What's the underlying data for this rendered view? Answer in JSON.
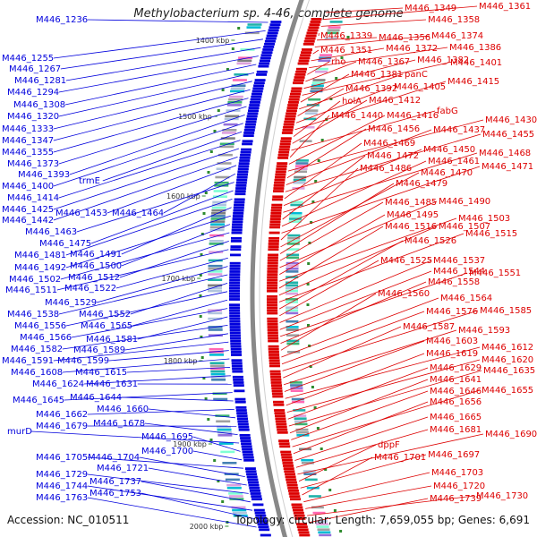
{
  "title": "Methylobacterium sp. 4-46, complete genome",
  "accession": "Accession: NC_010511",
  "summary": "Topology: circular; Length: 7,659,055 bp; Genes: 6,691",
  "colors": {
    "forward": "#0000dd",
    "reverse": "#dd0000",
    "backbone": "#888888",
    "tick": "#2e8b2e"
  },
  "ticks": [
    "1400 kbp",
    "1500 kbp",
    "1600 kbp",
    "1700 kbp",
    "1800 kbp",
    "1900 kbp",
    "2000 kbp"
  ],
  "left_labels": [
    "M446_1236",
    "M446_1255",
    "M446_1267",
    "M446_1281",
    "M446_1294",
    "M446_1308",
    "M446_1320",
    "M446_1333",
    "M446_1347",
    "M446_1355",
    "M446_1373",
    "M446_1393",
    "M446_1400",
    "trmE",
    "M446_1414",
    "M446_1425",
    "M446_1442",
    "M446_1453",
    "M446_1464",
    "M446_1463",
    "M446_1475",
    "M446_1481",
    "M446_1491",
    "M446_1492",
    "M446_1500",
    "M446_1502",
    "M446_1512",
    "M446_1511",
    "M446_1522",
    "M446_1529",
    "M446_1538",
    "M446_1552",
    "M446_1556",
    "M446_1565",
    "M446_1566",
    "M446_1581",
    "M446_1582",
    "M446_1589",
    "M446_1591",
    "M446_1599",
    "M446_1608",
    "M446_1615",
    "M446_1624",
    "M446_1631",
    "M446_1645",
    "M446_1644",
    "M446_1662",
    "M446_1660",
    "M446_1679",
    "M446_1678",
    "murD",
    "M446_1695",
    "M446_1700",
    "M446_1705",
    "M446_1704",
    "M446_1721",
    "M446_1729",
    "M446_1737",
    "M446_1744",
    "M446_1753",
    "M446_1763"
  ],
  "right_labels": [
    "M446_1349",
    "M446_1361",
    "M446_1358",
    "M446_1339",
    "M446_1356",
    "M446_1374",
    "M446_1351",
    "M446_1372",
    "M446_1386",
    "rho",
    "M446_1367",
    "M446_1382",
    "M446_1401",
    "M446_1381",
    "panC",
    "M446_1392",
    "M446_1405",
    "M446_1415",
    "holA",
    "M446_1412",
    "fabG",
    "M446_1440",
    "M446_1416",
    "M446_1430",
    "M446_1456",
    "M446_1437",
    "M446_1455",
    "M446_1469",
    "M446_1450",
    "M446_1468",
    "M446_1472",
    "M446_1461",
    "M446_1471",
    "M446_1486",
    "M446_1470",
    "M446_1479",
    "M446_1485",
    "M446_1490",
    "M446_1495",
    "M446_1503",
    "M446_1516",
    "M446_1507",
    "M446_1515",
    "M446_1526",
    "M446_1525",
    "M446_1537",
    "M446_1544",
    "M446_1551",
    "M446_1558",
    "M446_1560",
    "M446_1564",
    "M446_1576",
    "M446_1585",
    "M446_1587",
    "M446_1593",
    "M446_1603",
    "M446_1612",
    "M446_1619",
    "M446_1620",
    "M446_1629",
    "M446_1635",
    "M446_1641",
    "M446_1646",
    "M446_1655",
    "M446_1656",
    "M446_1665",
    "M446_1681",
    "M446_1690",
    "dppF",
    "M446_1697",
    "M446_1701",
    "M446_1703",
    "M446_1720",
    "M446_1730",
    "M446_1739"
  ]
}
